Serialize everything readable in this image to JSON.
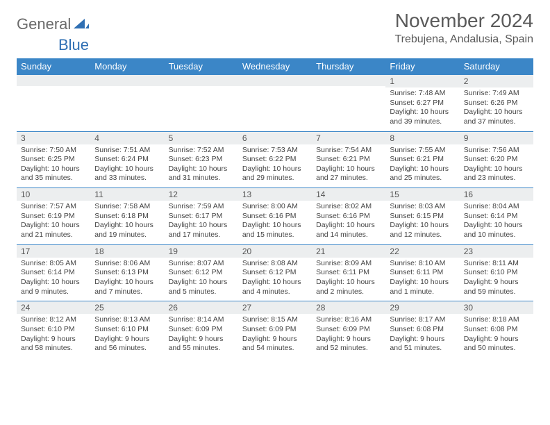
{
  "brand": {
    "general": "General",
    "blue": "Blue",
    "logo_fill": "#2f6fb3",
    "text_gray": "#6b6b6b"
  },
  "title": "November 2024",
  "location": "Trebujena, Andalusia, Spain",
  "colors": {
    "header_bg": "#3b86c7",
    "header_fg": "#ffffff",
    "daynum_bg": "#eceeef",
    "week_border": "#3b86c7",
    "body_text": "#444444",
    "title_text": "#5a5a5a"
  },
  "day_headers": [
    "Sunday",
    "Monday",
    "Tuesday",
    "Wednesday",
    "Thursday",
    "Friday",
    "Saturday"
  ],
  "weeks": [
    [
      {
        "n": "",
        "empty": true
      },
      {
        "n": "",
        "empty": true
      },
      {
        "n": "",
        "empty": true
      },
      {
        "n": "",
        "empty": true
      },
      {
        "n": "",
        "empty": true
      },
      {
        "n": "1",
        "sunrise": "Sunrise: 7:48 AM",
        "sunset": "Sunset: 6:27 PM",
        "daylight": "Daylight: 10 hours and 39 minutes."
      },
      {
        "n": "2",
        "sunrise": "Sunrise: 7:49 AM",
        "sunset": "Sunset: 6:26 PM",
        "daylight": "Daylight: 10 hours and 37 minutes."
      }
    ],
    [
      {
        "n": "3",
        "sunrise": "Sunrise: 7:50 AM",
        "sunset": "Sunset: 6:25 PM",
        "daylight": "Daylight: 10 hours and 35 minutes."
      },
      {
        "n": "4",
        "sunrise": "Sunrise: 7:51 AM",
        "sunset": "Sunset: 6:24 PM",
        "daylight": "Daylight: 10 hours and 33 minutes."
      },
      {
        "n": "5",
        "sunrise": "Sunrise: 7:52 AM",
        "sunset": "Sunset: 6:23 PM",
        "daylight": "Daylight: 10 hours and 31 minutes."
      },
      {
        "n": "6",
        "sunrise": "Sunrise: 7:53 AM",
        "sunset": "Sunset: 6:22 PM",
        "daylight": "Daylight: 10 hours and 29 minutes."
      },
      {
        "n": "7",
        "sunrise": "Sunrise: 7:54 AM",
        "sunset": "Sunset: 6:21 PM",
        "daylight": "Daylight: 10 hours and 27 minutes."
      },
      {
        "n": "8",
        "sunrise": "Sunrise: 7:55 AM",
        "sunset": "Sunset: 6:21 PM",
        "daylight": "Daylight: 10 hours and 25 minutes."
      },
      {
        "n": "9",
        "sunrise": "Sunrise: 7:56 AM",
        "sunset": "Sunset: 6:20 PM",
        "daylight": "Daylight: 10 hours and 23 minutes."
      }
    ],
    [
      {
        "n": "10",
        "sunrise": "Sunrise: 7:57 AM",
        "sunset": "Sunset: 6:19 PM",
        "daylight": "Daylight: 10 hours and 21 minutes."
      },
      {
        "n": "11",
        "sunrise": "Sunrise: 7:58 AM",
        "sunset": "Sunset: 6:18 PM",
        "daylight": "Daylight: 10 hours and 19 minutes."
      },
      {
        "n": "12",
        "sunrise": "Sunrise: 7:59 AM",
        "sunset": "Sunset: 6:17 PM",
        "daylight": "Daylight: 10 hours and 17 minutes."
      },
      {
        "n": "13",
        "sunrise": "Sunrise: 8:00 AM",
        "sunset": "Sunset: 6:16 PM",
        "daylight": "Daylight: 10 hours and 15 minutes."
      },
      {
        "n": "14",
        "sunrise": "Sunrise: 8:02 AM",
        "sunset": "Sunset: 6:16 PM",
        "daylight": "Daylight: 10 hours and 14 minutes."
      },
      {
        "n": "15",
        "sunrise": "Sunrise: 8:03 AM",
        "sunset": "Sunset: 6:15 PM",
        "daylight": "Daylight: 10 hours and 12 minutes."
      },
      {
        "n": "16",
        "sunrise": "Sunrise: 8:04 AM",
        "sunset": "Sunset: 6:14 PM",
        "daylight": "Daylight: 10 hours and 10 minutes."
      }
    ],
    [
      {
        "n": "17",
        "sunrise": "Sunrise: 8:05 AM",
        "sunset": "Sunset: 6:14 PM",
        "daylight": "Daylight: 10 hours and 9 minutes."
      },
      {
        "n": "18",
        "sunrise": "Sunrise: 8:06 AM",
        "sunset": "Sunset: 6:13 PM",
        "daylight": "Daylight: 10 hours and 7 minutes."
      },
      {
        "n": "19",
        "sunrise": "Sunrise: 8:07 AM",
        "sunset": "Sunset: 6:12 PM",
        "daylight": "Daylight: 10 hours and 5 minutes."
      },
      {
        "n": "20",
        "sunrise": "Sunrise: 8:08 AM",
        "sunset": "Sunset: 6:12 PM",
        "daylight": "Daylight: 10 hours and 4 minutes."
      },
      {
        "n": "21",
        "sunrise": "Sunrise: 8:09 AM",
        "sunset": "Sunset: 6:11 PM",
        "daylight": "Daylight: 10 hours and 2 minutes."
      },
      {
        "n": "22",
        "sunrise": "Sunrise: 8:10 AM",
        "sunset": "Sunset: 6:11 PM",
        "daylight": "Daylight: 10 hours and 1 minute."
      },
      {
        "n": "23",
        "sunrise": "Sunrise: 8:11 AM",
        "sunset": "Sunset: 6:10 PM",
        "daylight": "Daylight: 9 hours and 59 minutes."
      }
    ],
    [
      {
        "n": "24",
        "sunrise": "Sunrise: 8:12 AM",
        "sunset": "Sunset: 6:10 PM",
        "daylight": "Daylight: 9 hours and 58 minutes."
      },
      {
        "n": "25",
        "sunrise": "Sunrise: 8:13 AM",
        "sunset": "Sunset: 6:10 PM",
        "daylight": "Daylight: 9 hours and 56 minutes."
      },
      {
        "n": "26",
        "sunrise": "Sunrise: 8:14 AM",
        "sunset": "Sunset: 6:09 PM",
        "daylight": "Daylight: 9 hours and 55 minutes."
      },
      {
        "n": "27",
        "sunrise": "Sunrise: 8:15 AM",
        "sunset": "Sunset: 6:09 PM",
        "daylight": "Daylight: 9 hours and 54 minutes."
      },
      {
        "n": "28",
        "sunrise": "Sunrise: 8:16 AM",
        "sunset": "Sunset: 6:09 PM",
        "daylight": "Daylight: 9 hours and 52 minutes."
      },
      {
        "n": "29",
        "sunrise": "Sunrise: 8:17 AM",
        "sunset": "Sunset: 6:08 PM",
        "daylight": "Daylight: 9 hours and 51 minutes."
      },
      {
        "n": "30",
        "sunrise": "Sunrise: 8:18 AM",
        "sunset": "Sunset: 6:08 PM",
        "daylight": "Daylight: 9 hours and 50 minutes."
      }
    ]
  ]
}
